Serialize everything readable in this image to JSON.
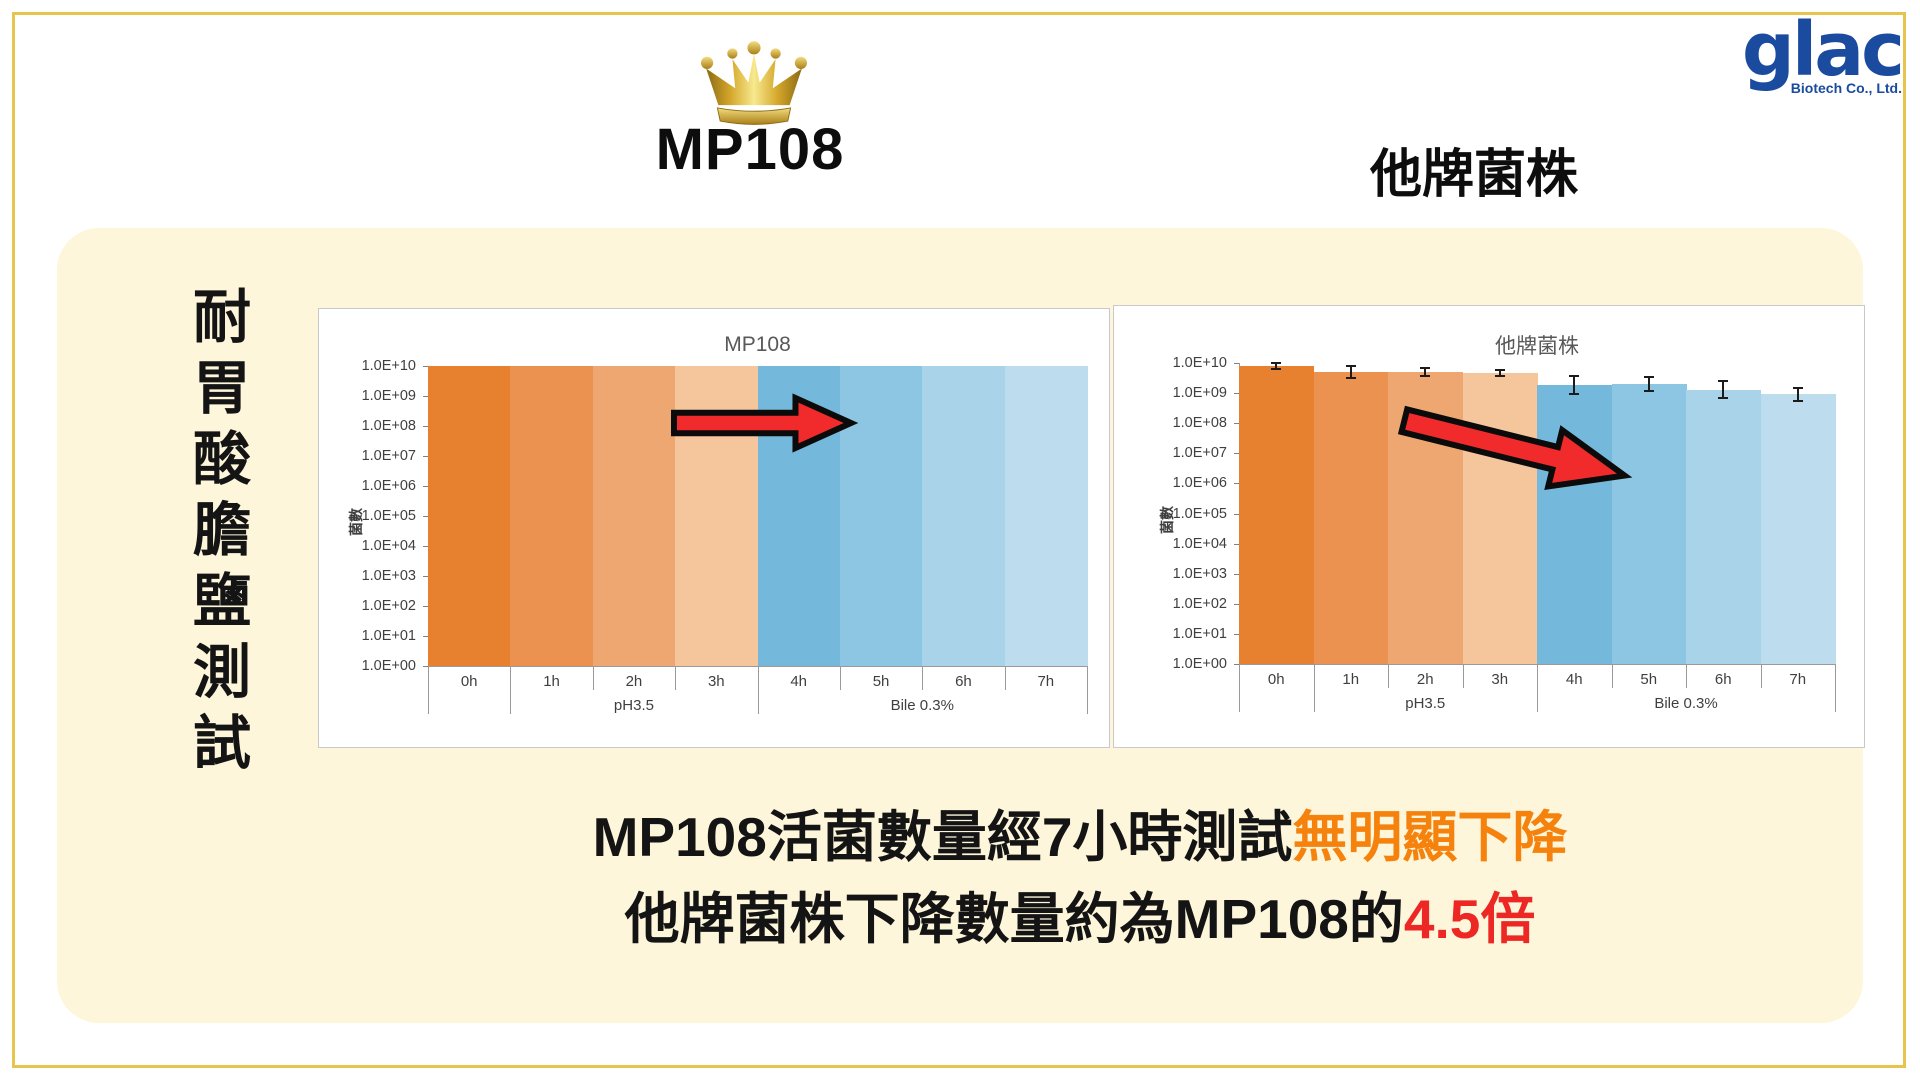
{
  "header": {
    "mp108_title": "MP108",
    "competitor_title": "他牌菌株",
    "logo": {
      "name": "glac",
      "subtitle": "Biotech Co., Ltd.",
      "color": "#1A4B9F"
    }
  },
  "icons": {
    "crown": "gold-crown-icon"
  },
  "side_label": "耐胃酸膽鹽測試",
  "colors": {
    "panel_background": "#FDF6DB",
    "page_border": "#E7C44C",
    "arrow_red": "#F12B2B",
    "highlight_orange": "#F5820C",
    "highlight_red": "#ED2724",
    "chart_title_gray": "#595959"
  },
  "summary": {
    "line1": [
      {
        "text": "MP108活菌數量經7小時測試",
        "color": "#141414"
      },
      {
        "text": "無明顯下降",
        "color": "#F5820C"
      }
    ],
    "line2": [
      {
        "text": "他牌菌株下降數量約為MP108的",
        "color": "#141414"
      },
      {
        "text": "4.5倍",
        "color": "#ED2724"
      }
    ]
  },
  "chart_data": [
    {
      "type": "bar",
      "title": "MP108",
      "ylabel": "菌數",
      "y_ticks": [
        "1.0E+10",
        "1.0E+09",
        "1.0E+08",
        "1.0E+07",
        "1.0E+06",
        "1.0E+05",
        "1.0E+04",
        "1.0E+03",
        "1.0E+02",
        "1.0E+01",
        "1.0E+00"
      ],
      "ylim_log10": [
        0,
        10
      ],
      "grid": false,
      "legend": "none",
      "categories": [
        "0h",
        "1h",
        "2h",
        "3h",
        "4h",
        "5h",
        "6h",
        "7h"
      ],
      "group_labels": [
        {
          "label": "pH3.5",
          "start": 1,
          "end": 3
        },
        {
          "label": "Bile 0.3%",
          "start": 4,
          "end": 7
        }
      ],
      "values": [
        10000000000.0,
        10000000000.0,
        10000000000.0,
        10000000000.0,
        10000000000.0,
        10000000000.0,
        10000000000.0,
        10000000000.0
      ],
      "bar_colors": [
        "#E8812F",
        "#EB9250",
        "#EFA771",
        "#F5C69C",
        "#74B9DB",
        "#8DC6E3",
        "#A9D3E9",
        "#BDDDEF"
      ],
      "error_bars_log10_half": null,
      "annotation_arrow": {
        "direction": "right",
        "rotate_deg": 0
      }
    },
    {
      "type": "bar",
      "title": "他牌菌株",
      "ylabel": "菌數",
      "y_ticks": [
        "1.0E+10",
        "1.0E+09",
        "1.0E+08",
        "1.0E+07",
        "1.0E+06",
        "1.0E+05",
        "1.0E+04",
        "1.0E+03",
        "1.0E+02",
        "1.0E+01",
        "1.0E+00"
      ],
      "ylim_log10": [
        0,
        10
      ],
      "grid": false,
      "legend": "none",
      "categories": [
        "0h",
        "1h",
        "2h",
        "3h",
        "4h",
        "5h",
        "6h",
        "7h"
      ],
      "group_labels": [
        {
          "label": "pH3.5",
          "start": 1,
          "end": 3
        },
        {
          "label": "Bile 0.3%",
          "start": 4,
          "end": 7
        }
      ],
      "values": [
        8000000000.0,
        5000000000.0,
        5000000000.0,
        4500000000.0,
        1800000000.0,
        2000000000.0,
        1300000000.0,
        900000000.0
      ],
      "bar_colors": [
        "#E8812F",
        "#EB9250",
        "#EFA771",
        "#F5C69C",
        "#74B9DB",
        "#8DC6E3",
        "#A9D3E9",
        "#BDDDEF"
      ],
      "error_bars_log10_half": [
        0.1,
        0.2,
        0.12,
        0.1,
        0.3,
        0.22,
        0.28,
        0.22
      ],
      "annotation_arrow": {
        "direction": "down-right",
        "rotate_deg": 14
      }
    }
  ]
}
